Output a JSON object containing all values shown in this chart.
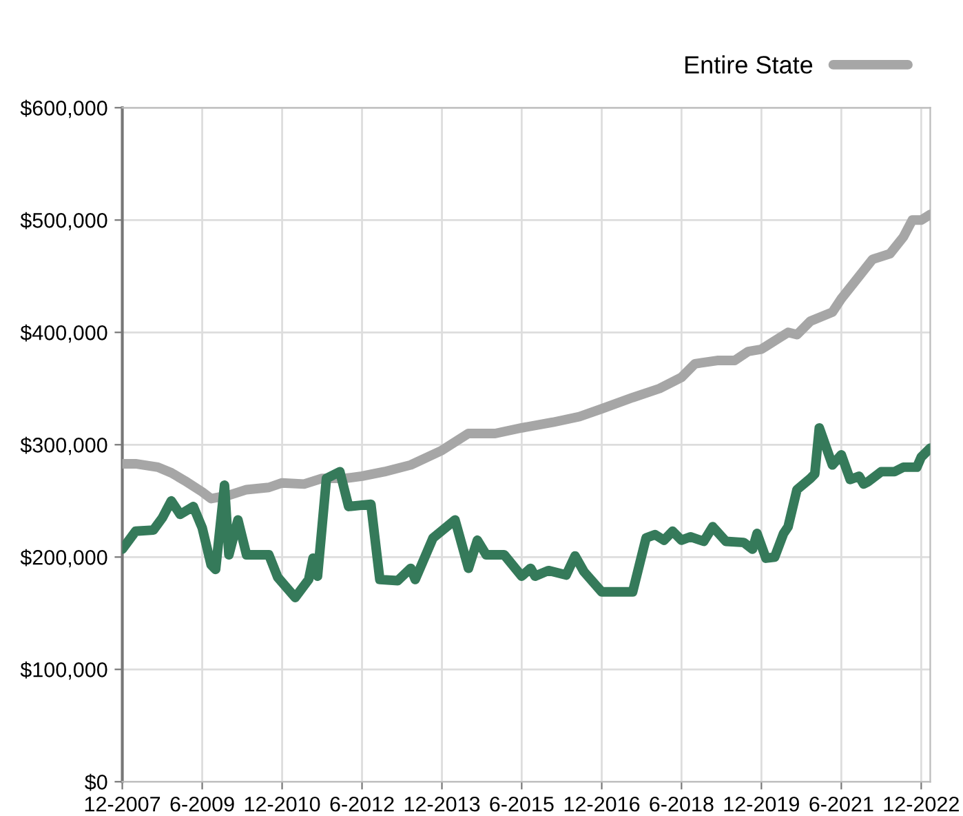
{
  "chart_data": {
    "type": "line",
    "ylim": [
      0,
      600000
    ],
    "yticks": [
      {
        "value": 0,
        "label": "$0"
      },
      {
        "value": 100000,
        "label": "$100,000"
      },
      {
        "value": 200000,
        "label": "$200,000"
      },
      {
        "value": 300000,
        "label": "$300,000"
      },
      {
        "value": 400000,
        "label": "$400,000"
      },
      {
        "value": 500000,
        "label": "$500,000"
      },
      {
        "value": 600000,
        "label": "$600,000"
      }
    ],
    "xlim": [
      "2007-12",
      "2023-02"
    ],
    "xticks": [
      {
        "value": "2007-12",
        "label": "12-2007"
      },
      {
        "value": "2009-06",
        "label": "6-2009"
      },
      {
        "value": "2010-12",
        "label": "12-2010"
      },
      {
        "value": "2012-06",
        "label": "6-2012"
      },
      {
        "value": "2013-12",
        "label": "12-2013"
      },
      {
        "value": "2015-06",
        "label": "6-2015"
      },
      {
        "value": "2016-12",
        "label": "12-2016"
      },
      {
        "value": "2018-06",
        "label": "6-2018"
      },
      {
        "value": "2019-12",
        "label": "12-2019"
      },
      {
        "value": "2021-06",
        "label": "6-2021"
      },
      {
        "value": "2022-12",
        "label": "12-2022"
      }
    ],
    "grid": true,
    "legend": "top right",
    "marker": "none",
    "line_style": "solid",
    "series": [
      {
        "name": "Entire State",
        "color": "#a6a6a6",
        "x": [
          "2007-12",
          "2008-03",
          "2008-08",
          "2008-11",
          "2009-02",
          "2009-06",
          "2009-08",
          "2009-12",
          "2010-04",
          "2010-09",
          "2010-12",
          "2011-05",
          "2011-09",
          "2012-02",
          "2012-06",
          "2012-11",
          "2013-05",
          "2013-12",
          "2014-06",
          "2014-12",
          "2015-06",
          "2016-01",
          "2016-07",
          "2016-12",
          "2017-07",
          "2018-01",
          "2018-06",
          "2018-09",
          "2019-02",
          "2019-06",
          "2019-09",
          "2019-12",
          "2020-04",
          "2020-06",
          "2020-08",
          "2020-11",
          "2021-04",
          "2021-06",
          "2021-09",
          "2022-01",
          "2022-05",
          "2022-08",
          "2022-10",
          "2022-12",
          "2023-02"
        ],
        "values": [
          283000,
          283000,
          280000,
          275000,
          268000,
          258000,
          252000,
          255000,
          260000,
          262000,
          266000,
          265000,
          270000,
          270000,
          272000,
          276000,
          282000,
          295000,
          310000,
          310000,
          315000,
          320000,
          325000,
          332000,
          342000,
          350000,
          360000,
          372000,
          375000,
          375000,
          383000,
          385000,
          395000,
          400000,
          398000,
          410000,
          418000,
          430000,
          445000,
          465000,
          470000,
          485000,
          500000,
          500000,
          505000
        ]
      },
      {
        "color": "#357a5a",
        "x": [
          "2007-12",
          "2008-03",
          "2008-07",
          "2008-09",
          "2008-11",
          "2009-01",
          "2009-04",
          "2009-06",
          "2009-08",
          "2009-09",
          "2009-11",
          "2009-12",
          "2010-02",
          "2010-04",
          "2010-09",
          "2010-11",
          "2011-03",
          "2011-06",
          "2011-07",
          "2011-08",
          "2011-10",
          "2012-01",
          "2012-03",
          "2012-08",
          "2012-10",
          "2013-02",
          "2013-05",
          "2013-06",
          "2013-10",
          "2014-03",
          "2014-06",
          "2014-08",
          "2014-10",
          "2015-02",
          "2015-06",
          "2015-08",
          "2015-09",
          "2015-12",
          "2016-04",
          "2016-06",
          "2016-08",
          "2016-12",
          "2017-07",
          "2017-10",
          "2017-12",
          "2018-02",
          "2018-04",
          "2018-06",
          "2018-08",
          "2018-11",
          "2019-01",
          "2019-04",
          "2019-08",
          "2019-10",
          "2019-11",
          "2020-01",
          "2020-03",
          "2020-05",
          "2020-06",
          "2020-08",
          "2020-11",
          "2020-12",
          "2021-01",
          "2021-04",
          "2021-06",
          "2021-08",
          "2021-10",
          "2021-11",
          "2021-12",
          "2022-03",
          "2022-06",
          "2022-08",
          "2022-11",
          "2022-12",
          "2023-02"
        ],
        "values": [
          207000,
          223000,
          224000,
          235000,
          250000,
          238000,
          245000,
          226000,
          193000,
          189000,
          264000,
          202000,
          233000,
          202000,
          202000,
          182000,
          164000,
          180000,
          199000,
          183000,
          270000,
          276000,
          245000,
          247000,
          180000,
          179000,
          190000,
          180000,
          217000,
          233000,
          190000,
          215000,
          202000,
          202000,
          183000,
          190000,
          183000,
          188000,
          184000,
          201000,
          187000,
          169000,
          169000,
          217000,
          220000,
          215000,
          223000,
          215000,
          218000,
          214000,
          227000,
          214000,
          213000,
          207000,
          221000,
          199000,
          200000,
          221000,
          227000,
          260000,
          270000,
          274000,
          315000,
          282000,
          291000,
          269000,
          272000,
          265000,
          267000,
          276000,
          276000,
          280000,
          280000,
          289000,
          297000
        ]
      }
    ]
  }
}
